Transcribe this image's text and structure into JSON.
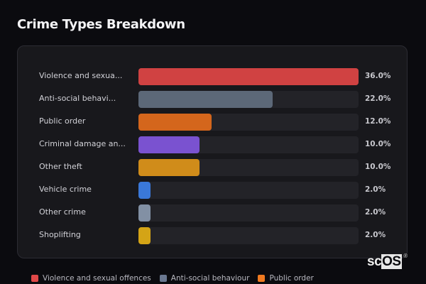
{
  "header": {
    "title": "Crime Types Breakdown"
  },
  "chart_data": {
    "type": "bar",
    "orientation": "horizontal",
    "title": "Crime Types Breakdown",
    "categories": [
      "Violence and sexual offences",
      "Anti-social behaviour",
      "Public order",
      "Criminal damage and arson",
      "Other theft",
      "Vehicle crime",
      "Other crime",
      "Shoplifting"
    ],
    "display_labels": [
      "Violence and sexua...",
      "Anti-social behavi...",
      "Public order",
      "Criminal damage an...",
      "Other theft",
      "Vehicle crime",
      "Other crime",
      "Shoplifting"
    ],
    "values": [
      36.0,
      22.0,
      12.0,
      10.0,
      10.0,
      2.0,
      2.0,
      2.0
    ],
    "value_labels": [
      "36.0%",
      "22.0%",
      "12.0%",
      "10.0%",
      "10.0%",
      "2.0%",
      "2.0%",
      "2.0%"
    ],
    "colors": [
      "#d04242",
      "#5c6878",
      "#d4661c",
      "#7a52d0",
      "#d08c1a",
      "#3a78d8",
      "#8290a4",
      "#d4a416"
    ],
    "xlim": [
      0,
      36
    ],
    "grid": false,
    "legend_position": "bottom"
  },
  "rows": [
    {
      "label": "Violence and sexua...",
      "pct": "36.0%",
      "width": "100%",
      "color": "#d04242"
    },
    {
      "label": "Anti-social behavi...",
      "pct": "22.0%",
      "width": "61.1%",
      "color": "#5c6878"
    },
    {
      "label": "Public order",
      "pct": "12.0%",
      "width": "33.3%",
      "color": "#d4661c"
    },
    {
      "label": "Criminal damage an...",
      "pct": "10.0%",
      "width": "27.8%",
      "color": "#7a52d0"
    },
    {
      "label": "Other theft",
      "pct": "10.0%",
      "width": "27.8%",
      "color": "#d08c1a"
    },
    {
      "label": "Vehicle crime",
      "pct": "2.0%",
      "width": "5.6%",
      "color": "#3a78d8"
    },
    {
      "label": "Other crime",
      "pct": "2.0%",
      "width": "5.6%",
      "color": "#8290a4"
    },
    {
      "label": "Shoplifting",
      "pct": "2.0%",
      "width": "5.6%",
      "color": "#d4a416"
    }
  ],
  "legend": [
    {
      "label": "Violence and sexual offences",
      "color": "#e04848"
    },
    {
      "label": "Anti-social behaviour",
      "color": "#6a7890"
    },
    {
      "label": "Public order",
      "color": "#f07a20"
    }
  ],
  "logo": {
    "prefix": "sc",
    "boxed": "OS",
    "reg": "®"
  }
}
